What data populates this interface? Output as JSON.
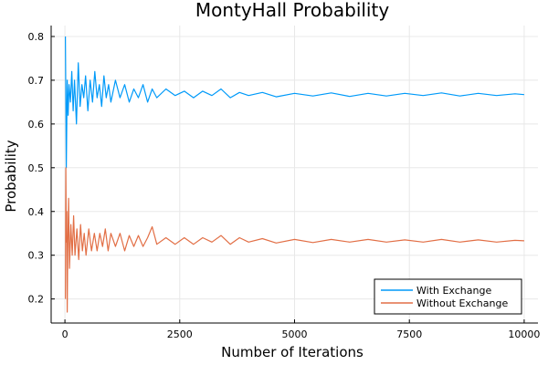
{
  "chart_data": {
    "type": "line",
    "title": "MontyHall Probability",
    "xlabel": "Number of Iterations",
    "ylabel": "Probability",
    "xlim": [
      -300,
      10300
    ],
    "ylim": [
      0.145,
      0.825
    ],
    "xticks": [
      0,
      2500,
      5000,
      7500,
      10000
    ],
    "yticks": [
      0.2,
      0.3,
      0.4,
      0.5,
      0.6,
      0.7,
      0.8
    ],
    "grid": true,
    "legend_position": "bottom-right",
    "series": [
      {
        "name": "With Exchange",
        "color": "#009af9",
        "points": [
          [
            10,
            0.8
          ],
          [
            20,
            0.65
          ],
          [
            30,
            0.5
          ],
          [
            40,
            0.6
          ],
          [
            50,
            0.7
          ],
          [
            70,
            0.62
          ],
          [
            90,
            0.69
          ],
          [
            120,
            0.65
          ],
          [
            150,
            0.72
          ],
          [
            180,
            0.63
          ],
          [
            210,
            0.7
          ],
          [
            250,
            0.6
          ],
          [
            290,
            0.74
          ],
          [
            330,
            0.64
          ],
          [
            370,
            0.69
          ],
          [
            410,
            0.66
          ],
          [
            450,
            0.71
          ],
          [
            500,
            0.63
          ],
          [
            550,
            0.7
          ],
          [
            600,
            0.65
          ],
          [
            650,
            0.72
          ],
          [
            700,
            0.66
          ],
          [
            750,
            0.69
          ],
          [
            800,
            0.64
          ],
          [
            850,
            0.71
          ],
          [
            900,
            0.66
          ],
          [
            950,
            0.69
          ],
          [
            1000,
            0.65
          ],
          [
            1100,
            0.7
          ],
          [
            1200,
            0.66
          ],
          [
            1300,
            0.69
          ],
          [
            1400,
            0.65
          ],
          [
            1500,
            0.68
          ],
          [
            1600,
            0.66
          ],
          [
            1700,
            0.69
          ],
          [
            1800,
            0.65
          ],
          [
            1900,
            0.68
          ],
          [
            2000,
            0.66
          ],
          [
            2200,
            0.68
          ],
          [
            2400,
            0.665
          ],
          [
            2600,
            0.675
          ],
          [
            2800,
            0.66
          ],
          [
            3000,
            0.675
          ],
          [
            3200,
            0.665
          ],
          [
            3400,
            0.68
          ],
          [
            3600,
            0.66
          ],
          [
            3800,
            0.672
          ],
          [
            4000,
            0.665
          ],
          [
            4300,
            0.672
          ],
          [
            4600,
            0.662
          ],
          [
            5000,
            0.67
          ],
          [
            5400,
            0.664
          ],
          [
            5800,
            0.671
          ],
          [
            6200,
            0.663
          ],
          [
            6600,
            0.67
          ],
          [
            7000,
            0.664
          ],
          [
            7400,
            0.67
          ],
          [
            7800,
            0.665
          ],
          [
            8200,
            0.671
          ],
          [
            8600,
            0.664
          ],
          [
            9000,
            0.67
          ],
          [
            9400,
            0.665
          ],
          [
            9800,
            0.669
          ],
          [
            10000,
            0.667
          ]
        ]
      },
      {
        "name": "Without Exchange",
        "color": "#e26f46",
        "points": [
          [
            10,
            0.2
          ],
          [
            20,
            0.5
          ],
          [
            30,
            0.33
          ],
          [
            40,
            0.4
          ],
          [
            50,
            0.17
          ],
          [
            60,
            0.3
          ],
          [
            80,
            0.43
          ],
          [
            100,
            0.27
          ],
          [
            130,
            0.37
          ],
          [
            160,
            0.3
          ],
          [
            190,
            0.39
          ],
          [
            220,
            0.3
          ],
          [
            260,
            0.36
          ],
          [
            300,
            0.29
          ],
          [
            340,
            0.37
          ],
          [
            380,
            0.31
          ],
          [
            420,
            0.35
          ],
          [
            460,
            0.3
          ],
          [
            520,
            0.36
          ],
          [
            580,
            0.31
          ],
          [
            640,
            0.35
          ],
          [
            700,
            0.31
          ],
          [
            760,
            0.35
          ],
          [
            820,
            0.32
          ],
          [
            880,
            0.36
          ],
          [
            940,
            0.31
          ],
          [
            1000,
            0.35
          ],
          [
            1100,
            0.32
          ],
          [
            1200,
            0.35
          ],
          [
            1300,
            0.31
          ],
          [
            1400,
            0.345
          ],
          [
            1500,
            0.32
          ],
          [
            1600,
            0.345
          ],
          [
            1700,
            0.32
          ],
          [
            1800,
            0.34
          ],
          [
            1900,
            0.365
          ],
          [
            2000,
            0.325
          ],
          [
            2200,
            0.34
          ],
          [
            2400,
            0.325
          ],
          [
            2600,
            0.34
          ],
          [
            2800,
            0.325
          ],
          [
            3000,
            0.34
          ],
          [
            3200,
            0.33
          ],
          [
            3400,
            0.345
          ],
          [
            3600,
            0.325
          ],
          [
            3800,
            0.34
          ],
          [
            4000,
            0.33
          ],
          [
            4300,
            0.338
          ],
          [
            4600,
            0.328
          ],
          [
            5000,
            0.336
          ],
          [
            5400,
            0.329
          ],
          [
            5800,
            0.336
          ],
          [
            6200,
            0.33
          ],
          [
            6600,
            0.336
          ],
          [
            7000,
            0.33
          ],
          [
            7400,
            0.335
          ],
          [
            7800,
            0.33
          ],
          [
            8200,
            0.336
          ],
          [
            8600,
            0.33
          ],
          [
            9000,
            0.335
          ],
          [
            9400,
            0.33
          ],
          [
            9800,
            0.334
          ],
          [
            10000,
            0.333
          ]
        ]
      }
    ]
  }
}
